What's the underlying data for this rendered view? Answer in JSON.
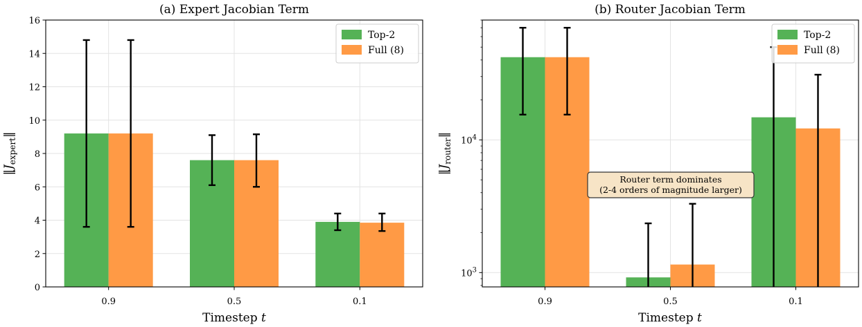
{
  "chart_data": [
    {
      "type": "bar",
      "title": "(a) Expert Jacobian Term",
      "xlabel": "Timestep",
      "xlabel_var": "t",
      "ylabel": "J",
      "ylabel_sub": "expert",
      "categories": [
        "0.9",
        "0.5",
        "0.1"
      ],
      "series": [
        {
          "name": "Top-2",
          "color": "#55b256",
          "values": [
            9.2,
            7.6,
            3.9
          ],
          "err_low": [
            3.6,
            6.1,
            3.4
          ],
          "err_high": [
            14.8,
            9.1,
            4.4
          ]
        },
        {
          "name": "Full (8)",
          "color": "#ff9a45",
          "values": [
            9.2,
            7.6,
            3.85
          ],
          "err_low": [
            3.6,
            6.0,
            3.35
          ],
          "err_high": [
            14.8,
            9.15,
            4.4
          ]
        }
      ],
      "ylim": [
        0,
        16
      ],
      "yticks": [
        "0",
        "2",
        "4",
        "6",
        "8",
        "10",
        "12",
        "14",
        "16"
      ],
      "yscale": "linear",
      "grid": true,
      "legend": "top-right"
    },
    {
      "type": "bar",
      "title": "(b) Router Jacobian Term",
      "xlabel": "Timestep",
      "xlabel_var": "t",
      "ylabel": "J",
      "ylabel_sub": "router",
      "categories": [
        "0.9",
        "0.5",
        "0.1"
      ],
      "series": [
        {
          "name": "Top-2",
          "color": "#55b256",
          "values": [
            42000,
            920,
            14800
          ],
          "err_low": [
            15500,
            500,
            500
          ],
          "err_high": [
            70000,
            2350,
            50000
          ]
        },
        {
          "name": "Full (8)",
          "color": "#ff9a45",
          "values": [
            42000,
            1150,
            12200
          ],
          "err_low": [
            15500,
            500,
            500
          ],
          "err_high": [
            70000,
            3300,
            31000
          ]
        }
      ],
      "ylim": [
        780,
        80000
      ],
      "yticks": [
        {
          "value": 1000,
          "base": "10",
          "exp": "3"
        },
        {
          "value": 10000,
          "base": "10",
          "exp": "4"
        }
      ],
      "yscale": "log",
      "grid": true,
      "legend": "top-right",
      "annotation": {
        "lines": [
          "Router term dominates",
          "(2-4 orders of magnitude larger)"
        ]
      }
    }
  ]
}
